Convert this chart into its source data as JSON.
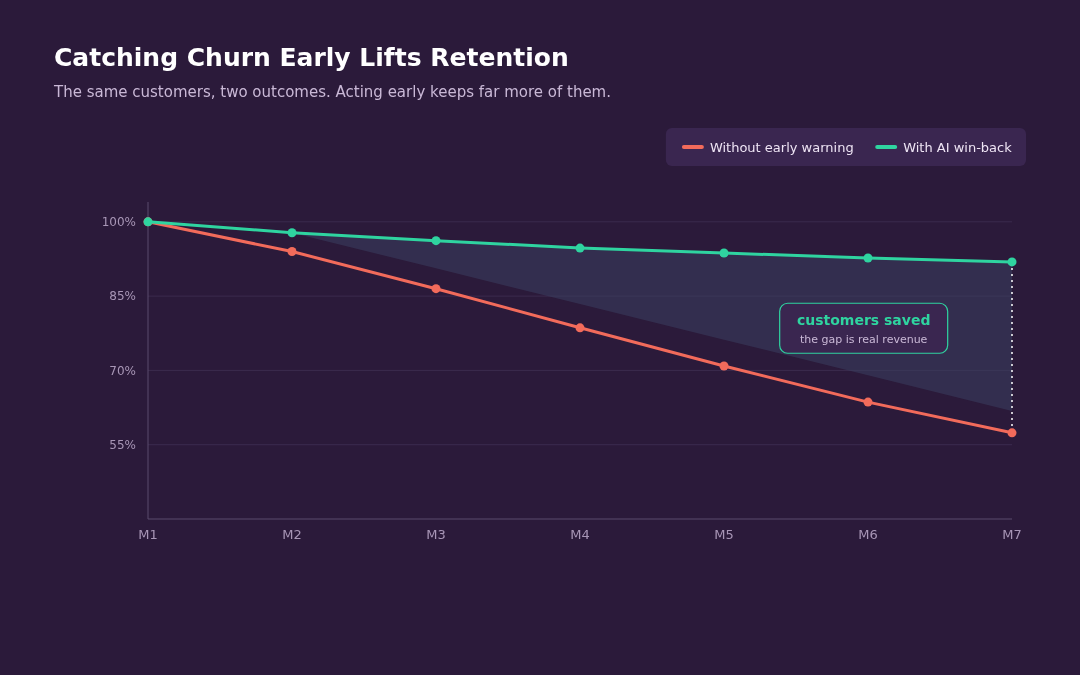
{
  "chart_data": {
    "type": "line",
    "title": "Catching Churn Early Lifts Retention",
    "subtitle": "The same customers, two outcomes. Acting early keeps far more of them.",
    "categories": [
      "M1",
      "M2",
      "M3",
      "M4",
      "M5",
      "M6",
      "M7"
    ],
    "series": [
      {
        "name": "Without early warning",
        "color": "#f26b5b",
        "values": [
          100,
          94,
          86.5,
          78.6,
          70.9,
          63.6,
          57.4
        ]
      },
      {
        "name": "With AI win-back",
        "color": "#2fd4a0",
        "values": [
          100,
          97.8,
          96.2,
          94.7,
          93.7,
          92.7,
          91.9
        ],
        "lower": [
          100,
          97.8,
          90.6,
          83.4,
          76.2,
          69,
          61.8
        ],
        "upper": [
          100,
          97.8,
          96.2,
          94.7,
          93.7,
          92.7,
          91.9
        ]
      }
    ],
    "ylim": [
      40,
      104
    ],
    "yticks": [
      {
        "value": 55,
        "label": "55%"
      },
      {
        "value": 70,
        "label": "70%"
      },
      {
        "value": 85,
        "label": "85%"
      },
      {
        "value": 100,
        "label": "100%"
      }
    ],
    "grid": "y",
    "legend": "top right",
    "marker": "circle",
    "line_style": "solid",
    "annotations": [
      "customers saved",
      "the gap is real revenue"
    ]
  }
}
